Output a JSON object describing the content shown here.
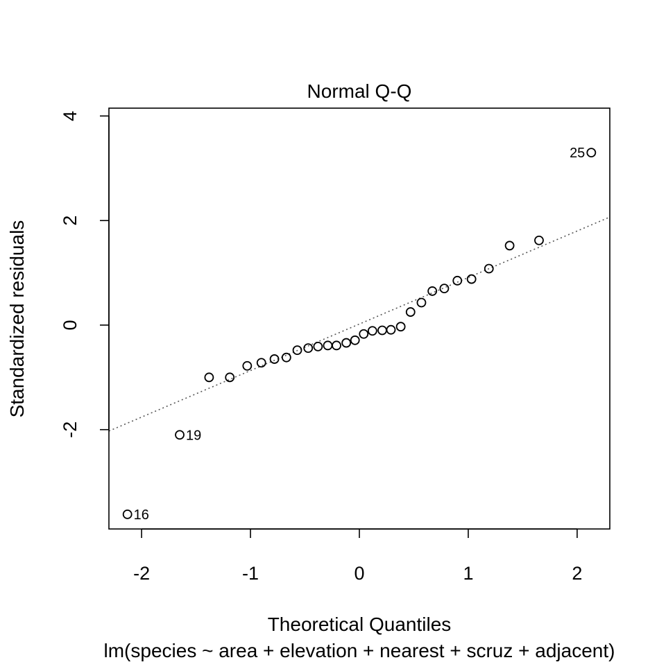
{
  "chart_data": {
    "type": "scatter",
    "title": "Normal Q-Q",
    "xlabel": "Theoretical Quantiles",
    "subtitle": "lm(species ~ area + elevation + nearest + scruz + adjacent)",
    "ylabel": "Standardized residuals",
    "xlim": [
      -2.3,
      2.3
    ],
    "ylim": [
      -3.9,
      4.15
    ],
    "x_ticks": [
      -2,
      -1,
      0,
      1,
      2
    ],
    "x_tick_labels": [
      "-2",
      "-1",
      "0",
      "1",
      "2"
    ],
    "y_ticks": [
      -2,
      0,
      2,
      4
    ],
    "y_tick_labels": [
      "-2",
      "0",
      "2",
      "4"
    ],
    "grid": false,
    "reference_line": {
      "intercept": 0.02,
      "slope": 0.89,
      "style": "dotted",
      "color": "#555555"
    },
    "points": [
      {
        "x": -2.13,
        "y": -3.62,
        "label": "16"
      },
      {
        "x": -1.65,
        "y": -2.1,
        "label": "19"
      },
      {
        "x": -1.38,
        "y": -1.0
      },
      {
        "x": -1.19,
        "y": -1.0
      },
      {
        "x": -1.03,
        "y": -0.78
      },
      {
        "x": -0.9,
        "y": -0.72
      },
      {
        "x": -0.78,
        "y": -0.65
      },
      {
        "x": -0.67,
        "y": -0.62
      },
      {
        "x": -0.57,
        "y": -0.48
      },
      {
        "x": -0.47,
        "y": -0.44
      },
      {
        "x": -0.38,
        "y": -0.41
      },
      {
        "x": -0.29,
        "y": -0.39
      },
      {
        "x": -0.21,
        "y": -0.39
      },
      {
        "x": -0.12,
        "y": -0.34
      },
      {
        "x": -0.04,
        "y": -0.29
      },
      {
        "x": 0.04,
        "y": -0.17
      },
      {
        "x": 0.12,
        "y": -0.11
      },
      {
        "x": 0.21,
        "y": -0.1
      },
      {
        "x": 0.29,
        "y": -0.09
      },
      {
        "x": 0.38,
        "y": -0.03
      },
      {
        "x": 0.47,
        "y": 0.25
      },
      {
        "x": 0.57,
        "y": 0.43
      },
      {
        "x": 0.67,
        "y": 0.65
      },
      {
        "x": 0.78,
        "y": 0.7
      },
      {
        "x": 0.9,
        "y": 0.85
      },
      {
        "x": 1.03,
        "y": 0.88
      },
      {
        "x": 1.19,
        "y": 1.08
      },
      {
        "x": 1.38,
        "y": 1.52
      },
      {
        "x": 1.65,
        "y": 1.62
      },
      {
        "x": 2.13,
        "y": 3.3,
        "label": "25"
      }
    ]
  }
}
